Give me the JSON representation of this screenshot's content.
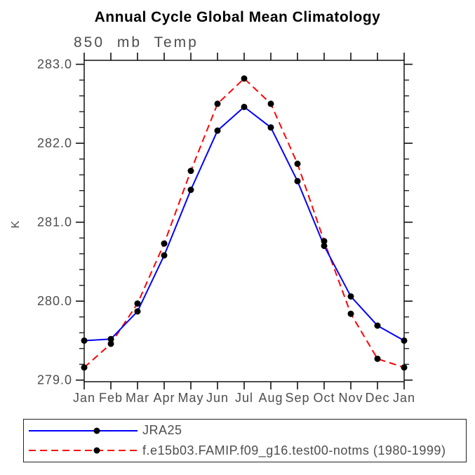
{
  "chart_data": {
    "type": "line",
    "title": "Annual Cycle Global Mean Climatology",
    "subtitle": "850 mb Temp",
    "ylabel": "K",
    "categories": [
      "Jan",
      "Feb",
      "Mar",
      "Apr",
      "May",
      "Jun",
      "Jul",
      "Aug",
      "Sep",
      "Oct",
      "Nov",
      "Dec",
      "Jan"
    ],
    "y_major_ticks": [
      279.0,
      280.0,
      281.0,
      282.0,
      283.0
    ],
    "y_tick_labels": [
      "279.0",
      "280.0",
      "281.0",
      "282.0",
      "283.0"
    ],
    "y_minor_step": 0.2,
    "ylim": [
      278.98,
      283.05
    ],
    "grid": false,
    "legend_position": "bottom-left",
    "axis_color": "#111111",
    "text_color": "#4d4d4d",
    "marker_color": "#000000",
    "series": [
      {
        "name": "JRA25",
        "color": "#0000ff",
        "line_style": "solid",
        "marker": "circle",
        "values": [
          279.5,
          279.52,
          279.87,
          280.58,
          281.41,
          282.16,
          282.46,
          282.2,
          281.52,
          280.7,
          280.06,
          279.69,
          279.5
        ]
      },
      {
        "name": "f.e15b03.FAMIP.f09_g16.test00-notms (1980-1999)",
        "color": "#ff0000",
        "line_style": "dashed",
        "marker": "circle",
        "values": [
          279.16,
          279.46,
          279.97,
          280.73,
          281.65,
          282.5,
          282.82,
          282.5,
          281.74,
          280.76,
          279.84,
          279.27,
          279.16
        ]
      }
    ]
  }
}
